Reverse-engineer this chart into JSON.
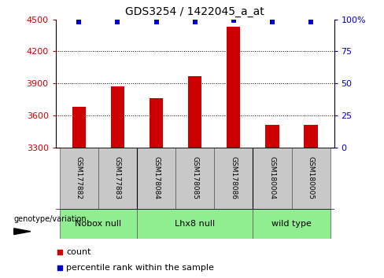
{
  "title": "GDS3254 / 1422045_a_at",
  "samples": [
    "GSM177882",
    "GSM177883",
    "GSM178084",
    "GSM178085",
    "GSM178086",
    "GSM180004",
    "GSM180005"
  ],
  "counts": [
    3680,
    3870,
    3760,
    3970,
    4430,
    3510,
    3510
  ],
  "percentiles": [
    98,
    98,
    98,
    98,
    99,
    98,
    98
  ],
  "ylim_left": [
    3300,
    4500
  ],
  "ylim_right": [
    0,
    100
  ],
  "yticks_left": [
    3300,
    3600,
    3900,
    4200,
    4500
  ],
  "yticks_right": [
    0,
    25,
    50,
    75,
    100
  ],
  "ytick_labels_right": [
    "0",
    "25",
    "50",
    "75",
    "100%"
  ],
  "bar_color": "#cc0000",
  "dot_color": "#0000cc",
  "group_boundaries": [
    [
      0,
      2,
      "Nobox null"
    ],
    [
      2,
      5,
      "Lhx8 null"
    ],
    [
      5,
      7,
      "wild type"
    ]
  ],
  "group_dividers": [
    2,
    5
  ],
  "legend_count_label": "count",
  "legend_pct_label": "percentile rank within the sample",
  "genotype_label": "genotype/variation",
  "background_color": "#ffffff",
  "tick_label_color_left": "#cc0000",
  "tick_label_color_right": "#0000cc",
  "dotted_grid_lines": [
    3600,
    3900,
    4200
  ],
  "bar_width": 0.35,
  "sample_label_color": "#000000",
  "gray_box_color": "#c8c8c8",
  "group_box_color": "#90ee90"
}
